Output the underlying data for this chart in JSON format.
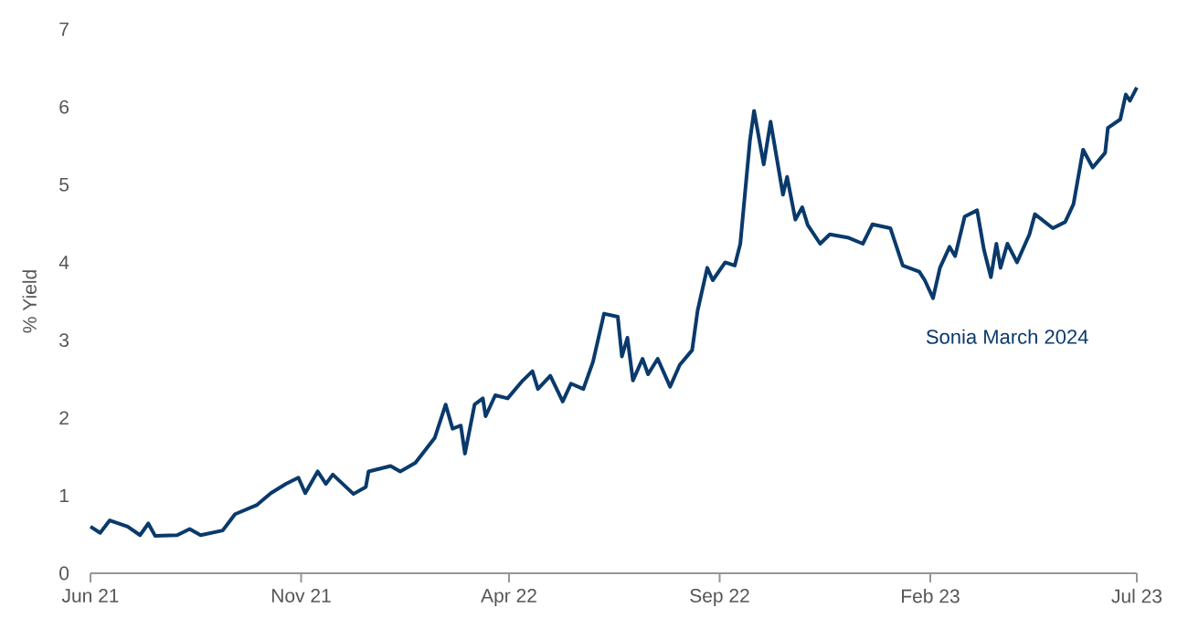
{
  "chart_data": {
    "type": "line",
    "ylabel": "% Yield",
    "xlim": [
      "2021-06-01",
      "2023-07-01"
    ],
    "ylim": [
      0,
      7
    ],
    "yticks": [
      0,
      1,
      2,
      3,
      4,
      5,
      6,
      7
    ],
    "xticks": [
      {
        "value": "2021-06-01",
        "label": "Jun 21"
      },
      {
        "value": "2021-11-01",
        "label": "Nov 21"
      },
      {
        "value": "2022-04-01",
        "label": "Apr 22"
      },
      {
        "value": "2022-09-01",
        "label": "Sep 22"
      },
      {
        "value": "2023-02-01",
        "label": "Feb 23"
      },
      {
        "value": "2023-07-01",
        "label": "Jul 23"
      }
    ],
    "grid": false,
    "legend": false,
    "marker": "none",
    "line_style": "solid",
    "x": [
      "2021-06-01",
      "2021-06-08",
      "2021-06-15",
      "2021-06-28",
      "2021-07-07",
      "2021-07-13",
      "2021-07-18",
      "2021-08-03",
      "2021-08-12",
      "2021-08-20",
      "2021-09-05",
      "2021-09-14",
      "2021-09-30",
      "2021-10-10",
      "2021-10-21",
      "2021-10-30",
      "2021-11-04",
      "2021-11-13",
      "2021-11-19",
      "2021-11-24",
      "2021-12-09",
      "2021-12-18",
      "2021-12-20",
      "2022-01-05",
      "2022-01-12",
      "2022-01-23",
      "2022-02-06",
      "2022-02-14",
      "2022-02-19",
      "2022-02-25",
      "2022-02-28",
      "2022-03-07",
      "2022-03-13",
      "2022-03-15",
      "2022-03-22",
      "2022-03-31",
      "2022-04-11",
      "2022-04-18",
      "2022-04-22",
      "2022-05-01",
      "2022-05-10",
      "2022-05-16",
      "2022-05-25",
      "2022-06-01",
      "2022-06-09",
      "2022-06-19",
      "2022-06-22",
      "2022-06-26",
      "2022-06-30",
      "2022-07-07",
      "2022-07-11",
      "2022-07-18",
      "2022-07-27",
      "2022-08-03",
      "2022-08-12",
      "2022-08-16",
      "2022-08-23",
      "2022-08-27",
      "2022-09-05",
      "2022-09-12",
      "2022-09-16",
      "2022-09-23",
      "2022-09-26",
      "2022-10-03",
      "2022-10-08",
      "2022-10-17",
      "2022-10-20",
      "2022-10-26",
      "2022-10-31",
      "2022-11-04",
      "2022-11-13",
      "2022-11-20",
      "2022-12-03",
      "2022-12-14",
      "2022-12-21",
      "2023-01-03",
      "2023-01-12",
      "2023-01-24",
      "2023-01-28",
      "2023-02-03",
      "2023-02-08",
      "2023-02-15",
      "2023-02-19",
      "2023-02-26",
      "2023-03-07",
      "2023-03-12",
      "2023-03-17",
      "2023-03-21",
      "2023-03-24",
      "2023-03-29",
      "2023-04-05",
      "2023-04-14",
      "2023-04-18",
      "2023-05-01",
      "2023-05-10",
      "2023-05-16",
      "2023-05-23",
      "2023-05-30",
      "2023-06-08",
      "2023-06-10",
      "2023-06-19",
      "2023-06-23",
      "2023-06-26",
      "2023-07-01"
    ],
    "series": [
      {
        "name": "Sonia March 2024",
        "color": "#0a3a6b",
        "values": [
          0.6,
          0.52,
          0.68,
          0.6,
          0.49,
          0.64,
          0.48,
          0.49,
          0.57,
          0.49,
          0.55,
          0.76,
          0.88,
          1.03,
          1.15,
          1.23,
          1.03,
          1.31,
          1.15,
          1.27,
          1.02,
          1.11,
          1.31,
          1.38,
          1.31,
          1.42,
          1.74,
          2.17,
          1.86,
          1.9,
          1.54,
          2.17,
          2.25,
          2.02,
          2.29,
          2.25,
          2.48,
          2.6,
          2.37,
          2.54,
          2.21,
          2.44,
          2.37,
          2.72,
          3.34,
          3.3,
          2.79,
          3.03,
          2.48,
          2.76,
          2.56,
          2.76,
          2.4,
          2.68,
          2.87,
          3.38,
          3.93,
          3.77,
          4.0,
          3.96,
          4.24,
          5.57,
          5.95,
          5.26,
          5.81,
          4.87,
          5.1,
          4.55,
          4.71,
          4.48,
          4.24,
          4.36,
          4.32,
          4.24,
          4.49,
          4.44,
          3.96,
          3.88,
          3.77,
          3.54,
          3.93,
          4.2,
          4.08,
          4.59,
          4.67,
          4.16,
          3.81,
          4.24,
          3.93,
          4.24,
          4.0,
          4.36,
          4.62,
          4.44,
          4.52,
          4.75,
          5.45,
          5.22,
          5.41,
          5.73,
          5.84,
          6.16,
          6.08,
          6.25
        ]
      }
    ]
  }
}
